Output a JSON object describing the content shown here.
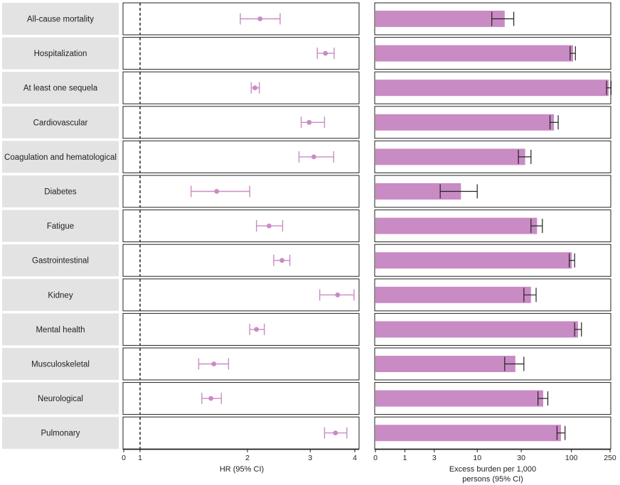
{
  "chart_data": [
    {
      "type": "forest",
      "xlabel": "HR (95% CI)",
      "x_scale": "log",
      "xlim": [
        0,
        4
      ],
      "ticks": [
        "0",
        "1",
        "2",
        "3",
        "4"
      ],
      "reference_line": 1,
      "categories": [
        "All-cause mortality",
        "Hospitalization",
        "At least one sequela",
        "Cardiovascular",
        "Coagulation and hematological",
        "Diabetes",
        "Fatigue",
        "Gastrointestinal",
        "Kidney",
        "Mental health",
        "Musculoskeletal",
        "Neurological",
        "Pulmonary"
      ],
      "series": [
        {
          "estimate": [
            2.17,
            3.31,
            2.1,
            2.98,
            3.07,
            1.64,
            2.3,
            2.5,
            3.58,
            2.12,
            1.61,
            1.58,
            3.53
          ],
          "lower": [
            1.91,
            3.14,
            2.05,
            2.83,
            2.79,
            1.39,
            2.12,
            2.37,
            3.19,
            2.03,
            1.46,
            1.49,
            3.29
          ],
          "upper": [
            2.47,
            3.5,
            2.16,
            3.29,
            3.49,
            2.03,
            2.51,
            2.63,
            3.98,
            2.23,
            1.77,
            1.69,
            3.8
          ],
          "color": "#c98bc4"
        }
      ]
    },
    {
      "type": "bar",
      "xlabel": "Excess burden per 1,000 persons (95% CI)",
      "x_scale": "log1p",
      "xlim": [
        0,
        250
      ],
      "ticks": [
        "0",
        "1",
        "3",
        "10",
        "30",
        "100",
        "250"
      ],
      "categories": [
        "All-cause mortality",
        "Hospitalization",
        "At least one sequela",
        "Cardiovascular",
        "Coagulation and hematological",
        "Diabetes",
        "Fatigue",
        "Gastrointestinal",
        "Kidney",
        "Mental health",
        "Musculoskeletal",
        "Neurological",
        "Pulmonary"
      ],
      "series": [
        {
          "values": [
            20,
            104,
            242,
            66,
            33,
            6.5,
            44,
            101,
            38,
            117,
            26,
            51,
            78
          ],
          "lower": [
            14.5,
            97,
            230,
            60,
            28,
            3.6,
            38,
            95,
            32,
            108,
            20,
            45,
            71
          ],
          "upper": [
            25,
            110,
            256,
            73,
            38,
            10,
            50,
            108,
            43,
            127,
            32,
            57,
            86
          ],
          "color": "#c98bc4"
        }
      ]
    }
  ]
}
